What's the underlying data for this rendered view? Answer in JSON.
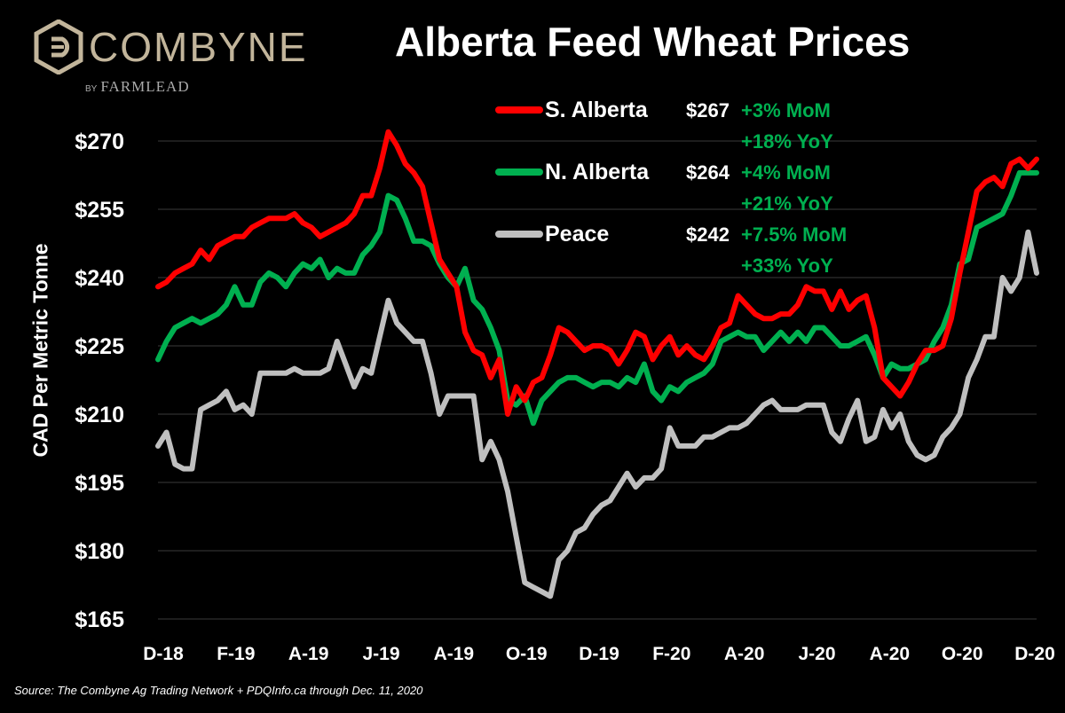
{
  "brand": {
    "name": "COMBYNE",
    "by": "BY",
    "sub": "FARMLEAD"
  },
  "colors": {
    "south": "#ff0000",
    "north": "#00b050",
    "peace": "#bfbfbf",
    "accent": "#00b050",
    "logo": "#c2b59b"
  },
  "chart_data": {
    "type": "line",
    "title": "Alberta Feed Wheat Prices",
    "ylabel": "CAD Per Metric Tonne",
    "xlabel": "",
    "source": "Source: The Combyne Ag Trading Network + PDQInfo.ca through Dec. 11, 2020",
    "yticks": [
      "$165",
      "$180",
      "$195",
      "$210",
      "$225",
      "$240",
      "$255",
      "$270"
    ],
    "ylim": [
      165,
      275
    ],
    "xticks": [
      "D-18",
      "F-19",
      "A-19",
      "J-19",
      "A-19",
      "O-19",
      "D-19",
      "F-20",
      "A-20",
      "J-20",
      "A-20",
      "O-20",
      "D-20"
    ],
    "grid": true,
    "legend_position": "top-right",
    "series": [
      {
        "name": "S. Alberta",
        "color": "#ff0000",
        "price": "$267",
        "mom": "+3% MoM",
        "yoy": "+18% YoY",
        "points": [
          [
            0,
            238
          ],
          [
            1,
            239
          ],
          [
            2,
            241
          ],
          [
            3,
            242
          ],
          [
            4,
            243
          ],
          [
            5,
            246
          ],
          [
            6,
            244
          ],
          [
            7,
            247
          ],
          [
            8,
            248
          ],
          [
            9,
            249
          ],
          [
            10,
            249
          ],
          [
            11,
            251
          ],
          [
            12,
            252
          ],
          [
            13,
            253
          ],
          [
            14,
            253
          ],
          [
            15,
            253
          ],
          [
            16,
            254
          ],
          [
            17,
            252
          ],
          [
            18,
            251
          ],
          [
            19,
            249
          ],
          [
            20,
            250
          ],
          [
            21,
            251
          ],
          [
            22,
            252
          ],
          [
            23,
            254
          ],
          [
            24,
            258
          ],
          [
            25,
            258
          ],
          [
            26,
            264
          ],
          [
            27,
            272
          ],
          [
            28,
            269
          ],
          [
            29,
            265
          ],
          [
            30,
            263
          ],
          [
            31,
            260
          ],
          [
            32,
            252
          ],
          [
            33,
            244
          ],
          [
            34,
            241
          ],
          [
            35,
            238
          ],
          [
            36,
            228
          ],
          [
            37,
            224
          ],
          [
            38,
            223
          ],
          [
            39,
            218
          ],
          [
            40,
            222
          ],
          [
            41,
            210
          ],
          [
            42,
            216
          ],
          [
            43,
            213
          ],
          [
            44,
            217
          ],
          [
            45,
            218
          ],
          [
            46,
            223
          ],
          [
            47,
            229
          ],
          [
            48,
            228
          ],
          [
            49,
            226
          ],
          [
            50,
            224
          ],
          [
            51,
            225
          ],
          [
            52,
            225
          ],
          [
            53,
            224
          ],
          [
            54,
            221
          ],
          [
            55,
            224
          ],
          [
            56,
            228
          ],
          [
            57,
            227
          ],
          [
            58,
            222
          ],
          [
            59,
            225
          ],
          [
            60,
            227
          ],
          [
            61,
            223
          ],
          [
            62,
            225
          ],
          [
            63,
            223
          ],
          [
            64,
            222
          ],
          [
            65,
            225
          ],
          [
            66,
            229
          ],
          [
            67,
            230
          ],
          [
            68,
            236
          ],
          [
            69,
            234
          ],
          [
            70,
            232
          ],
          [
            71,
            231
          ],
          [
            72,
            231
          ],
          [
            73,
            232
          ],
          [
            74,
            232
          ],
          [
            75,
            234
          ],
          [
            76,
            238
          ],
          [
            77,
            237
          ],
          [
            78,
            237
          ],
          [
            79,
            233
          ],
          [
            80,
            237
          ],
          [
            81,
            233
          ],
          [
            82,
            235
          ],
          [
            83,
            236
          ],
          [
            84,
            229
          ],
          [
            85,
            218
          ],
          [
            86,
            216
          ],
          [
            87,
            214
          ],
          [
            88,
            217
          ],
          [
            89,
            221
          ],
          [
            90,
            224
          ],
          [
            91,
            224
          ],
          [
            92,
            225
          ],
          [
            93,
            231
          ],
          [
            94,
            241
          ],
          [
            95,
            250
          ],
          [
            96,
            259
          ],
          [
            97,
            261
          ],
          [
            98,
            262
          ],
          [
            99,
            260
          ],
          [
            100,
            265
          ],
          [
            101,
            266
          ],
          [
            102,
            264
          ],
          [
            103,
            266
          ]
        ]
      },
      {
        "name": "N. Alberta",
        "color": "#00b050",
        "price": "$264",
        "mom": "+4% MoM",
        "yoy": "+21% YoY",
        "points": [
          [
            0,
            222
          ],
          [
            1,
            226
          ],
          [
            2,
            229
          ],
          [
            3,
            230
          ],
          [
            4,
            231
          ],
          [
            5,
            230
          ],
          [
            6,
            231
          ],
          [
            7,
            232
          ],
          [
            8,
            234
          ],
          [
            9,
            238
          ],
          [
            10,
            234
          ],
          [
            11,
            234
          ],
          [
            12,
            239
          ],
          [
            13,
            241
          ],
          [
            14,
            240
          ],
          [
            15,
            238
          ],
          [
            16,
            241
          ],
          [
            17,
            243
          ],
          [
            18,
            242
          ],
          [
            19,
            244
          ],
          [
            20,
            240
          ],
          [
            21,
            242
          ],
          [
            22,
            241
          ],
          [
            23,
            241
          ],
          [
            24,
            245
          ],
          [
            25,
            247
          ],
          [
            26,
            250
          ],
          [
            27,
            258
          ],
          [
            28,
            257
          ],
          [
            29,
            253
          ],
          [
            30,
            248
          ],
          [
            31,
            248
          ],
          [
            32,
            247
          ],
          [
            33,
            243
          ],
          [
            34,
            240
          ],
          [
            35,
            238
          ],
          [
            36,
            242
          ],
          [
            37,
            235
          ],
          [
            38,
            233
          ],
          [
            39,
            229
          ],
          [
            40,
            224
          ],
          [
            41,
            213
          ],
          [
            42,
            212
          ],
          [
            43,
            214
          ],
          [
            44,
            208
          ],
          [
            45,
            213
          ],
          [
            46,
            215
          ],
          [
            47,
            217
          ],
          [
            48,
            218
          ],
          [
            49,
            218
          ],
          [
            50,
            217
          ],
          [
            51,
            216
          ],
          [
            52,
            217
          ],
          [
            53,
            217
          ],
          [
            54,
            216
          ],
          [
            55,
            218
          ],
          [
            56,
            217
          ],
          [
            57,
            221
          ],
          [
            58,
            215
          ],
          [
            59,
            213
          ],
          [
            60,
            216
          ],
          [
            61,
            215
          ],
          [
            62,
            217
          ],
          [
            63,
            218
          ],
          [
            64,
            219
          ],
          [
            65,
            221
          ],
          [
            66,
            226
          ],
          [
            67,
            227
          ],
          [
            68,
            228
          ],
          [
            69,
            227
          ],
          [
            70,
            227
          ],
          [
            71,
            224
          ],
          [
            72,
            226
          ],
          [
            73,
            228
          ],
          [
            74,
            226
          ],
          [
            75,
            228
          ],
          [
            76,
            226
          ],
          [
            77,
            229
          ],
          [
            78,
            229
          ],
          [
            79,
            227
          ],
          [
            80,
            225
          ],
          [
            81,
            225
          ],
          [
            82,
            226
          ],
          [
            83,
            227
          ],
          [
            84,
            223
          ],
          [
            85,
            218
          ],
          [
            86,
            221
          ],
          [
            87,
            220
          ],
          [
            88,
            220
          ],
          [
            89,
            221
          ],
          [
            90,
            222
          ],
          [
            91,
            226
          ],
          [
            92,
            229
          ],
          [
            93,
            234
          ],
          [
            94,
            243
          ],
          [
            95,
            244
          ],
          [
            96,
            251
          ],
          [
            97,
            252
          ],
          [
            98,
            253
          ],
          [
            99,
            254
          ],
          [
            100,
            258
          ],
          [
            101,
            263
          ],
          [
            102,
            263
          ],
          [
            103,
            263
          ]
        ]
      },
      {
        "name": "Peace",
        "color": "#bfbfbf",
        "price": "$242",
        "mom": "+7.5% MoM",
        "yoy": "+33% YoY",
        "points": [
          [
            0,
            203
          ],
          [
            1,
            206
          ],
          [
            2,
            199
          ],
          [
            3,
            198
          ],
          [
            4,
            198
          ],
          [
            5,
            211
          ],
          [
            6,
            212
          ],
          [
            7,
            213
          ],
          [
            8,
            215
          ],
          [
            9,
            211
          ],
          [
            10,
            212
          ],
          [
            11,
            210
          ],
          [
            12,
            219
          ],
          [
            13,
            219
          ],
          [
            14,
            219
          ],
          [
            15,
            219
          ],
          [
            16,
            220
          ],
          [
            17,
            219
          ],
          [
            18,
            219
          ],
          [
            19,
            219
          ],
          [
            20,
            220
          ],
          [
            21,
            226
          ],
          [
            22,
            221
          ],
          [
            23,
            216
          ],
          [
            24,
            220
          ],
          [
            25,
            219
          ],
          [
            26,
            227
          ],
          [
            27,
            235
          ],
          [
            28,
            230
          ],
          [
            29,
            228
          ],
          [
            30,
            226
          ],
          [
            31,
            226
          ],
          [
            32,
            219
          ],
          [
            33,
            210
          ],
          [
            34,
            214
          ],
          [
            35,
            214
          ],
          [
            36,
            214
          ],
          [
            37,
            214
          ],
          [
            38,
            200
          ],
          [
            39,
            204
          ],
          [
            40,
            200
          ],
          [
            41,
            193
          ],
          [
            42,
            183
          ],
          [
            43,
            173
          ],
          [
            44,
            172
          ],
          [
            45,
            171
          ],
          [
            46,
            170
          ],
          [
            47,
            178
          ],
          [
            48,
            180
          ],
          [
            49,
            184
          ],
          [
            50,
            185
          ],
          [
            51,
            188
          ],
          [
            52,
            190
          ],
          [
            53,
            191
          ],
          [
            54,
            194
          ],
          [
            55,
            197
          ],
          [
            56,
            194
          ],
          [
            57,
            196
          ],
          [
            58,
            196
          ],
          [
            59,
            198
          ],
          [
            60,
            207
          ],
          [
            61,
            203
          ],
          [
            62,
            203
          ],
          [
            63,
            203
          ],
          [
            64,
            205
          ],
          [
            65,
            205
          ],
          [
            66,
            206
          ],
          [
            67,
            207
          ],
          [
            68,
            207
          ],
          [
            69,
            208
          ],
          [
            70,
            210
          ],
          [
            71,
            212
          ],
          [
            72,
            213
          ],
          [
            73,
            211
          ],
          [
            74,
            211
          ],
          [
            75,
            211
          ],
          [
            76,
            212
          ],
          [
            77,
            212
          ],
          [
            78,
            212
          ],
          [
            79,
            206
          ],
          [
            80,
            204
          ],
          [
            81,
            209
          ],
          [
            82,
            213
          ],
          [
            83,
            204
          ],
          [
            84,
            205
          ],
          [
            85,
            211
          ],
          [
            86,
            207
          ],
          [
            87,
            210
          ],
          [
            88,
            204
          ],
          [
            89,
            201
          ],
          [
            90,
            200
          ],
          [
            91,
            201
          ],
          [
            92,
            205
          ],
          [
            93,
            207
          ],
          [
            94,
            210
          ],
          [
            95,
            218
          ],
          [
            96,
            222
          ],
          [
            97,
            227
          ],
          [
            98,
            227
          ],
          [
            99,
            240
          ],
          [
            100,
            237
          ],
          [
            101,
            240
          ],
          [
            102,
            250
          ],
          [
            103,
            241
          ]
        ]
      }
    ]
  }
}
